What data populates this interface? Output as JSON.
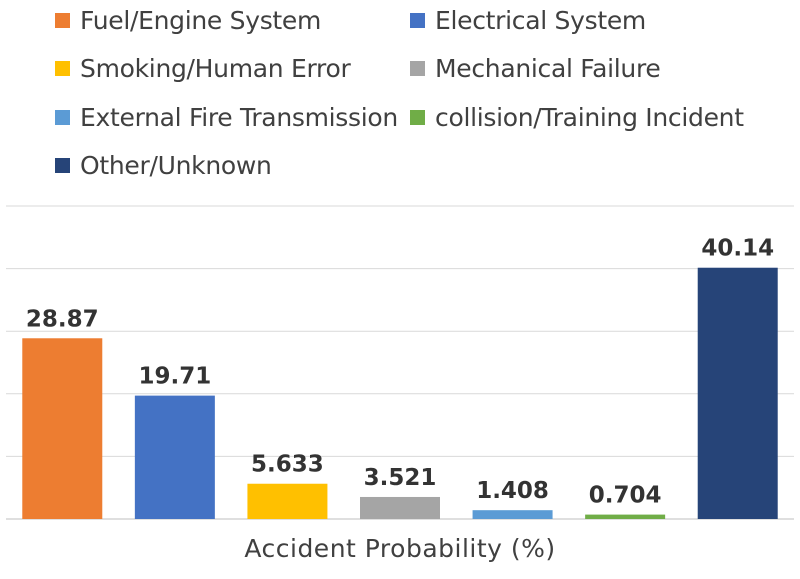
{
  "chart_data": {
    "type": "bar",
    "categories": [
      "Fuel/Engine System",
      "Electrical System",
      "Smoking/Human Error",
      "Mechanical Failure",
      "External Fire Transmission",
      "collision/Training Incident",
      "Other/Unknown"
    ],
    "values": [
      28.87,
      19.71,
      5.633,
      3.521,
      1.408,
      0.704,
      40.14
    ],
    "data_labels": [
      "28.87",
      "19.71",
      "5.633",
      "3.521",
      "1.408",
      "0.704",
      "40.14"
    ],
    "colors": [
      "#ED7D31",
      "#4472C4",
      "#FFC000",
      "#A5A5A5",
      "#5B9BD5",
      "#70AD47",
      "#264478"
    ],
    "xlabel": "Accident Probability (%)",
    "ylim": [
      0,
      50
    ],
    "grid": true,
    "legend_position": "top"
  }
}
